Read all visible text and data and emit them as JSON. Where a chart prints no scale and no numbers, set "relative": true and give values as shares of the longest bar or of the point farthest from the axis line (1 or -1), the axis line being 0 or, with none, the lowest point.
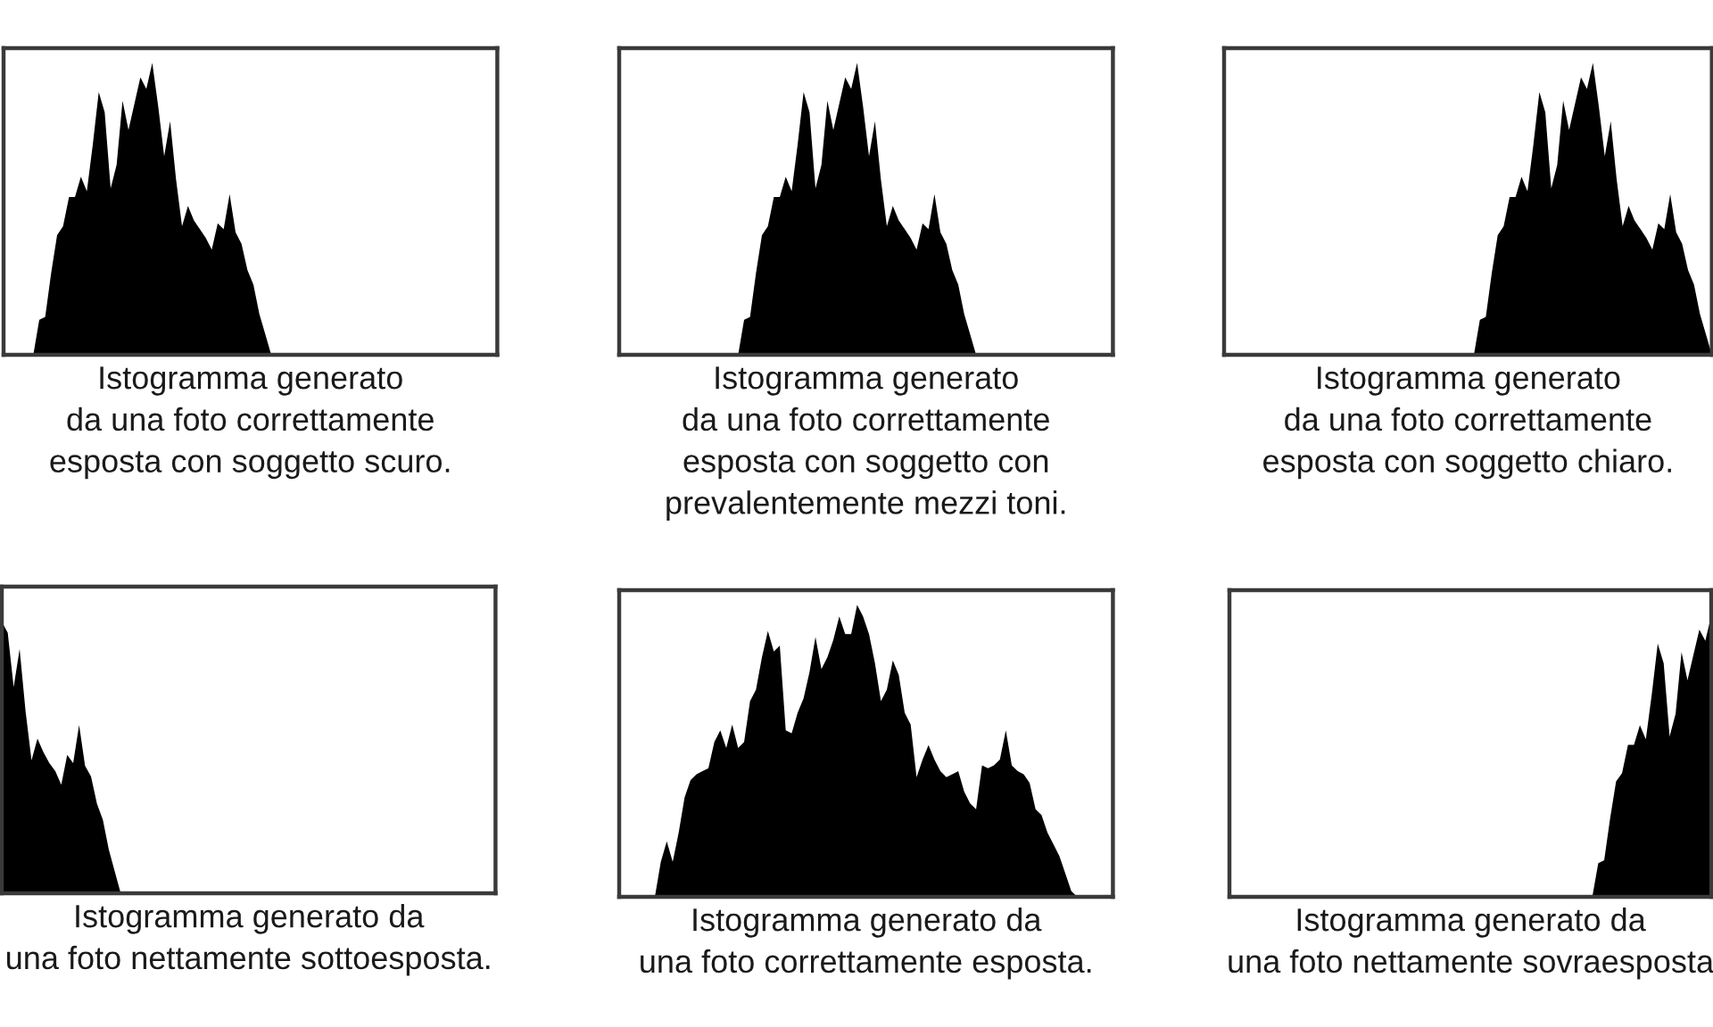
{
  "chart_data": [
    {
      "type": "area",
      "relative": true,
      "color": "#000000",
      "title": "Istogramma generato\nda una foto correttamente\nesposta con soggetto scuro.",
      "categories": [
        null,
        null,
        null,
        null,
        null,
        null,
        null,
        null,
        null,
        null,
        null,
        null,
        null,
        null,
        null,
        null,
        null,
        null,
        null,
        null,
        null,
        null,
        null,
        null,
        null,
        null,
        null,
        null,
        null,
        null,
        null,
        null,
        null,
        null,
        null,
        null,
        null,
        null,
        null,
        null,
        null,
        null,
        null,
        null,
        null,
        null,
        null,
        null,
        null,
        null,
        null,
        null,
        null,
        null,
        null,
        null,
        null,
        null,
        null,
        null,
        null,
        null,
        null,
        null,
        null,
        null,
        null,
        null,
        null,
        null,
        null,
        null,
        null,
        null,
        null,
        null,
        null,
        null,
        null,
        null,
        null,
        null,
        null,
        null
      ],
      "values": [
        0,
        0,
        0,
        0,
        0,
        0,
        0.12,
        0.13,
        0.28,
        0.41,
        0.44,
        0.54,
        0.54,
        0.61,
        0.56,
        0.72,
        0.9,
        0.83,
        0.57,
        0.65,
        0.87,
        0.77,
        0.86,
        0.95,
        0.91,
        1,
        0.85,
        0.68,
        0.8,
        0.6,
        0.44,
        0.51,
        0.46,
        0.43,
        0.4,
        0.36,
        0.45,
        0.43,
        0.55,
        0.42,
        0.38,
        0.29,
        0.24,
        0.14,
        0.07,
        0,
        0,
        0,
        0,
        0,
        0,
        0,
        0,
        0,
        0,
        0,
        0,
        0,
        0,
        0,
        0,
        0,
        0,
        0,
        0,
        0,
        0,
        0,
        0,
        0,
        0,
        0,
        0,
        0,
        0,
        0,
        0,
        0,
        0,
        0,
        0,
        0,
        0,
        0
      ]
    },
    {
      "type": "area",
      "relative": true,
      "color": "#000000",
      "title": "Istogramma generato\nda una foto correttamente\nesposta con soggetto con\nprevalentemente mezzi toni.",
      "categories": [
        null,
        null,
        null,
        null,
        null,
        null,
        null,
        null,
        null,
        null,
        null,
        null,
        null,
        null,
        null,
        null,
        null,
        null,
        null,
        null,
        null,
        null,
        null,
        null,
        null,
        null,
        null,
        null,
        null,
        null,
        null,
        null,
        null,
        null,
        null,
        null,
        null,
        null,
        null,
        null,
        null,
        null,
        null,
        null,
        null,
        null,
        null,
        null,
        null,
        null,
        null,
        null,
        null,
        null,
        null,
        null,
        null,
        null,
        null,
        null,
        null,
        null,
        null,
        null,
        null,
        null,
        null,
        null,
        null,
        null,
        null,
        null,
        null,
        null,
        null,
        null,
        null,
        null,
        null,
        null,
        null,
        null,
        null,
        null
      ],
      "values": [
        0,
        0,
        0,
        0,
        0,
        0,
        0,
        0,
        0,
        0,
        0,
        0,
        0,
        0,
        0,
        0,
        0,
        0,
        0,
        0,
        0,
        0.12,
        0.13,
        0.28,
        0.41,
        0.44,
        0.54,
        0.54,
        0.61,
        0.56,
        0.72,
        0.9,
        0.83,
        0.57,
        0.65,
        0.87,
        0.77,
        0.86,
        0.95,
        0.91,
        1,
        0.85,
        0.68,
        0.8,
        0.6,
        0.44,
        0.51,
        0.46,
        0.43,
        0.4,
        0.36,
        0.45,
        0.43,
        0.55,
        0.42,
        0.38,
        0.29,
        0.24,
        0.14,
        0.07,
        0,
        0,
        0,
        0,
        0,
        0,
        0,
        0,
        0,
        0,
        0,
        0,
        0,
        0,
        0,
        0,
        0,
        0,
        0,
        0,
        0,
        0,
        0,
        0
      ]
    },
    {
      "type": "area",
      "relative": true,
      "color": "#000000",
      "title": "Istogramma generato\nda una foto correttamente\nesposta con soggetto chiaro.",
      "categories": [
        null,
        null,
        null,
        null,
        null,
        null,
        null,
        null,
        null,
        null,
        null,
        null,
        null,
        null,
        null,
        null,
        null,
        null,
        null,
        null,
        null,
        null,
        null,
        null,
        null,
        null,
        null,
        null,
        null,
        null,
        null,
        null,
        null,
        null,
        null,
        null,
        null,
        null,
        null,
        null,
        null,
        null,
        null,
        null,
        null,
        null,
        null,
        null,
        null,
        null,
        null,
        null,
        null,
        null,
        null,
        null,
        null,
        null,
        null,
        null,
        null,
        null,
        null,
        null,
        null,
        null,
        null,
        null,
        null,
        null,
        null,
        null,
        null,
        null,
        null,
        null,
        null,
        null,
        null,
        null,
        null,
        null,
        null
      ],
      "values": [
        0,
        0,
        0,
        0,
        0,
        0,
        0,
        0,
        0,
        0,
        0,
        0,
        0,
        0,
        0,
        0,
        0,
        0,
        0,
        0,
        0,
        0,
        0,
        0,
        0,
        0,
        0,
        0,
        0,
        0,
        0,
        0,
        0,
        0,
        0,
        0,
        0,
        0,
        0,
        0,
        0,
        0,
        0,
        0.12,
        0.13,
        0.28,
        0.41,
        0.44,
        0.54,
        0.54,
        0.61,
        0.56,
        0.72,
        0.9,
        0.83,
        0.57,
        0.65,
        0.87,
        0.77,
        0.86,
        0.95,
        0.91,
        1,
        0.85,
        0.68,
        0.8,
        0.6,
        0.44,
        0.51,
        0.46,
        0.43,
        0.4,
        0.36,
        0.45,
        0.43,
        0.55,
        0.42,
        0.38,
        0.29,
        0.24,
        0.14,
        0.07,
        0
      ]
    },
    {
      "type": "area",
      "relative": true,
      "color": "#000000",
      "title": "Istogramma generato da\nuna foto nettamente sottoesposta.",
      "categories": [
        null,
        null,
        null,
        null,
        null,
        null,
        null,
        null,
        null,
        null,
        null,
        null,
        null,
        null,
        null,
        null,
        null,
        null,
        null,
        null,
        null,
        null,
        null,
        null,
        null,
        null,
        null,
        null,
        null,
        null,
        null,
        null,
        null,
        null,
        null,
        null,
        null,
        null,
        null,
        null,
        null,
        null,
        null,
        null,
        null,
        null,
        null,
        null,
        null,
        null,
        null,
        null,
        null,
        null,
        null,
        null,
        null,
        null,
        null,
        null,
        null,
        null,
        null,
        null,
        null,
        null,
        null,
        null,
        null,
        null,
        null,
        null,
        null,
        null,
        null,
        null,
        null,
        null,
        null,
        null,
        null,
        null,
        null,
        null
      ],
      "values": [
        1,
        0.96,
        0.76,
        0.9,
        0.67,
        0.49,
        0.57,
        0.52,
        0.48,
        0.45,
        0.4,
        0.51,
        0.48,
        0.62,
        0.47,
        0.43,
        0.33,
        0.27,
        0.16,
        0.08,
        0,
        0,
        0,
        0,
        0,
        0,
        0,
        0,
        0,
        0,
        0,
        0,
        0,
        0,
        0,
        0,
        0,
        0,
        0,
        0,
        0,
        0,
        0,
        0,
        0,
        0,
        0,
        0,
        0,
        0,
        0,
        0,
        0,
        0,
        0,
        0,
        0,
        0,
        0,
        0,
        0,
        0,
        0,
        0,
        0,
        0,
        0,
        0,
        0,
        0,
        0,
        0,
        0,
        0,
        0,
        0,
        0,
        0,
        0,
        0,
        0,
        0,
        0,
        0
      ]
    },
    {
      "type": "area",
      "relative": true,
      "color": "#000000",
      "title": "Istogramma generato da\nuna foto correttamente esposta.",
      "categories": [
        null,
        null,
        null,
        null,
        null,
        null,
        null,
        null,
        null,
        null,
        null,
        null,
        null,
        null,
        null,
        null,
        null,
        null,
        null,
        null,
        null,
        null,
        null,
        null,
        null,
        null,
        null,
        null,
        null,
        null,
        null,
        null,
        null,
        null,
        null,
        null,
        null,
        null,
        null,
        null,
        null,
        null,
        null,
        null,
        null,
        null,
        null,
        null,
        null,
        null,
        null,
        null,
        null,
        null,
        null,
        null,
        null,
        null,
        null,
        null,
        null,
        null,
        null,
        null,
        null,
        null,
        null,
        null,
        null,
        null,
        null,
        null,
        null,
        null,
        null,
        null,
        null,
        null,
        null,
        null,
        null,
        null,
        null,
        null
      ],
      "values": [
        0,
        0,
        0,
        0,
        0,
        0,
        0,
        0.12,
        0.19,
        0.12,
        0.22,
        0.34,
        0.4,
        0.42,
        0.43,
        0.44,
        0.53,
        0.57,
        0.51,
        0.59,
        0.51,
        0.53,
        0.67,
        0.71,
        0.82,
        0.91,
        0.84,
        0.86,
        0.57,
        0.56,
        0.63,
        0.68,
        0.77,
        0.89,
        0.78,
        0.82,
        0.88,
        0.96,
        0.9,
        0.9,
        1,
        0.96,
        0.9,
        0.8,
        0.67,
        0.71,
        0.81,
        0.76,
        0.63,
        0.59,
        0.41,
        0.47,
        0.52,
        0.47,
        0.43,
        0.41,
        0.42,
        0.43,
        0.36,
        0.32,
        0.3,
        0.45,
        0.44,
        0.45,
        0.47,
        0.57,
        0.45,
        0.43,
        0.42,
        0.39,
        0.3,
        0.28,
        0.22,
        0.18,
        0.14,
        0.08,
        0.02,
        0,
        0,
        0,
        0,
        0,
        0,
        0
      ]
    },
    {
      "type": "area",
      "relative": true,
      "color": "#000000",
      "title": "Istogramma generato da\nuna foto nettamente sovraesposta",
      "categories": [
        null,
        null,
        null,
        null,
        null,
        null,
        null,
        null,
        null,
        null,
        null,
        null,
        null,
        null,
        null,
        null,
        null,
        null,
        null,
        null,
        null,
        null,
        null,
        null,
        null,
        null,
        null,
        null,
        null,
        null,
        null,
        null,
        null,
        null,
        null,
        null,
        null,
        null,
        null,
        null,
        null,
        null,
        null,
        null,
        null,
        null,
        null,
        null,
        null,
        null,
        null,
        null,
        null,
        null,
        null,
        null,
        null,
        null,
        null,
        null,
        null,
        null,
        null,
        null,
        null,
        null,
        null,
        null,
        null,
        null,
        null,
        null,
        null,
        null,
        null,
        null,
        null,
        null,
        null,
        null,
        null,
        null
      ],
      "values": [
        0,
        0,
        0,
        0,
        0,
        0,
        0,
        0,
        0,
        0,
        0,
        0,
        0,
        0,
        0,
        0,
        0,
        0,
        0,
        0,
        0,
        0,
        0,
        0,
        0,
        0,
        0,
        0,
        0,
        0,
        0,
        0,
        0,
        0,
        0,
        0,
        0,
        0,
        0,
        0,
        0,
        0,
        0,
        0,
        0,
        0,
        0,
        0,
        0,
        0,
        0,
        0,
        0,
        0,
        0,
        0,
        0,
        0,
        0,
        0,
        0,
        0,
        0.12,
        0.13,
        0.28,
        0.41,
        0.44,
        0.54,
        0.54,
        0.61,
        0.56,
        0.72,
        0.9,
        0.83,
        0.57,
        0.65,
        0.87,
        0.77,
        0.86,
        0.95,
        0.91,
        1
      ]
    }
  ]
}
